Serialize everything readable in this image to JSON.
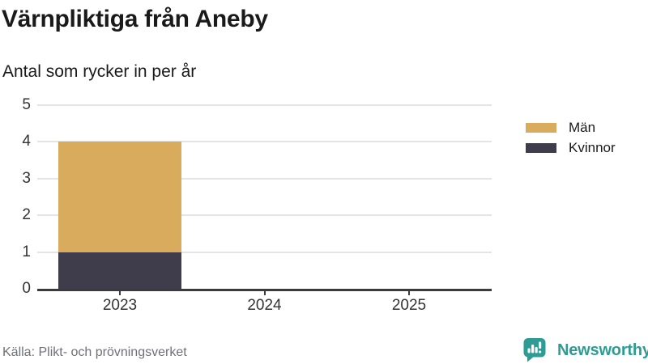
{
  "header": {
    "title": "Värnpliktiga från Aneby",
    "subtitle": "Antal som rycker in per år"
  },
  "chart_data": {
    "type": "bar",
    "stacked": true,
    "title": "Värnpliktiga från Aneby",
    "subtitle": "Antal som rycker in per år",
    "categories": [
      "2023",
      "2024",
      "2025"
    ],
    "series": [
      {
        "name": "Män",
        "color": "#d9ab5d",
        "values": [
          3,
          0,
          0
        ]
      },
      {
        "name": "Kvinnor",
        "color": "#3f3d4c",
        "values": [
          1,
          0,
          0
        ]
      }
    ],
    "stack_totals": [
      4,
      0,
      0
    ],
    "xlabel": "",
    "ylabel": "",
    "ylim": [
      0,
      5
    ],
    "yticks": [
      0,
      1,
      2,
      3,
      4,
      5
    ],
    "grid": true,
    "legend_position": "right"
  },
  "footer": {
    "source": "Källa: Plikt- och prövningsverket",
    "brand": "Newsworthy"
  },
  "colors": {
    "men": "#d9ab5d",
    "women": "#3f3d4c",
    "axis": "#3a3a44",
    "gridline": "#e4e4e4",
    "title_text": "#1a1a1a",
    "tick_text": "#333333",
    "source_text": "#70707a",
    "brand_teal": "#2e9c94"
  }
}
